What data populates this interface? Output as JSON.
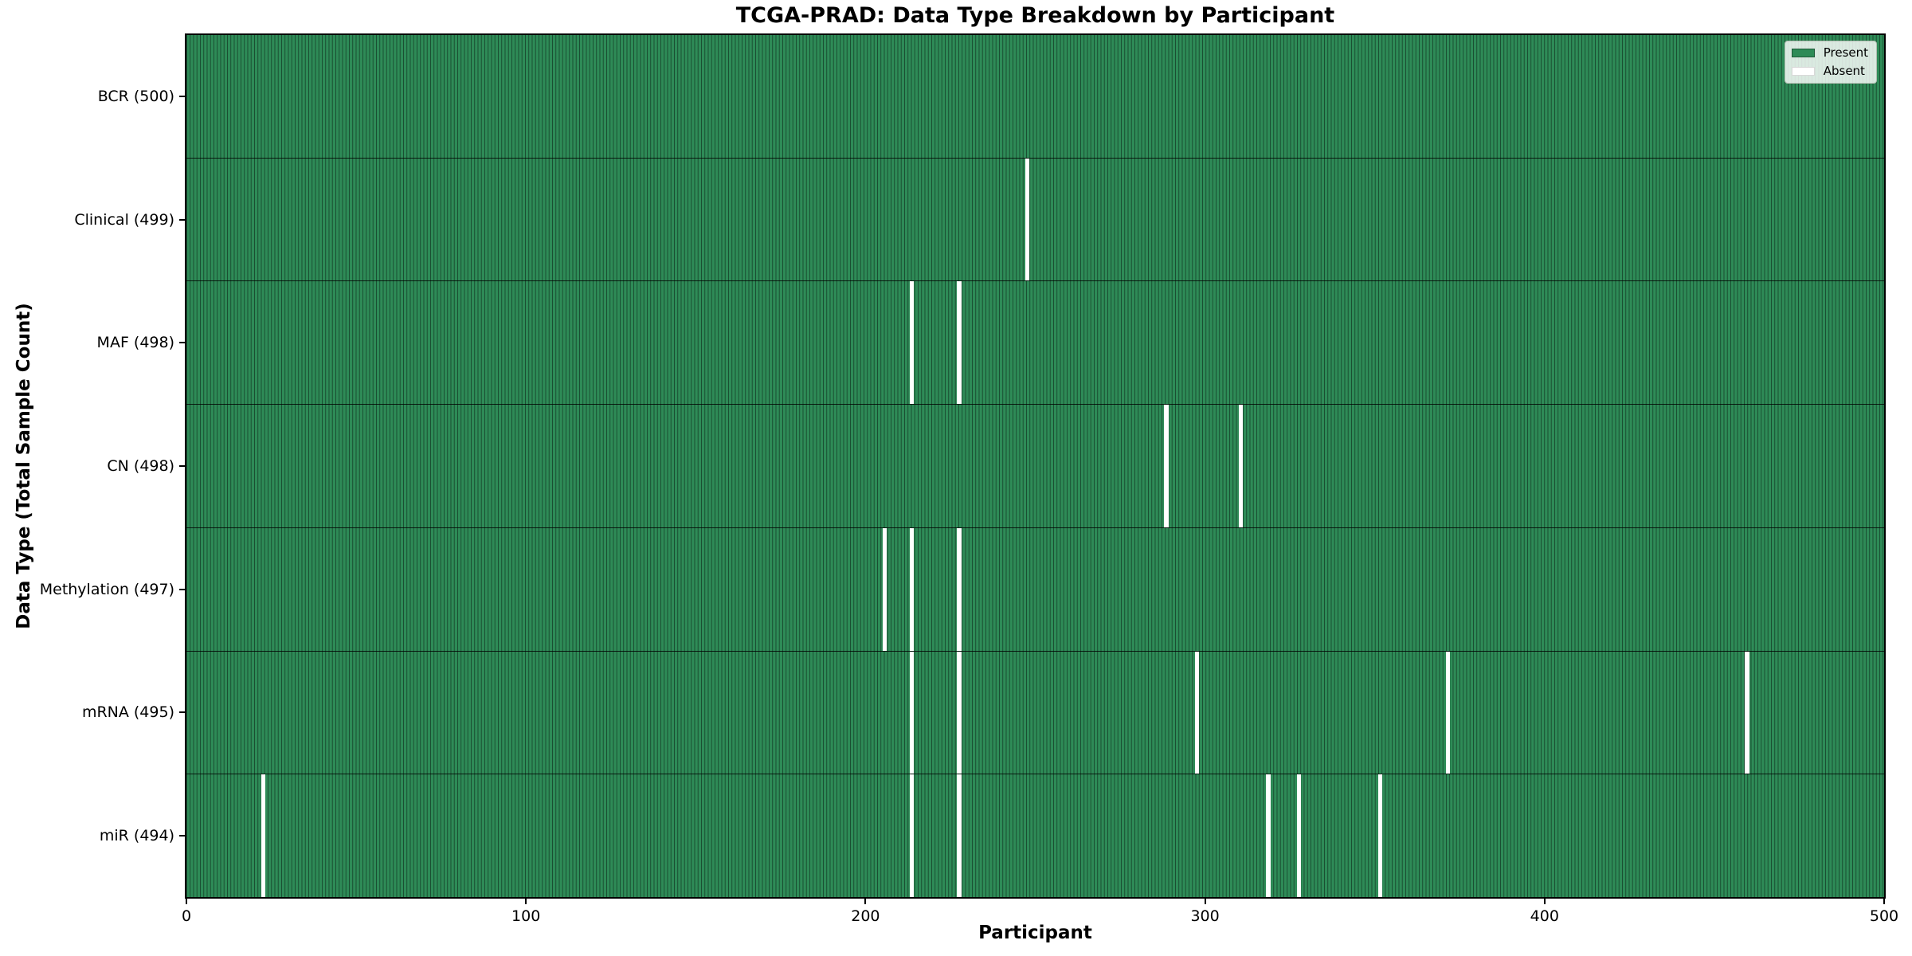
{
  "title": "TCGA-PRAD: Data Type Breakdown by Participant",
  "axes": {
    "xlabel": "Participant",
    "ylabel": "Data Type (Total Sample Count)"
  },
  "legend": {
    "entries": [
      {
        "label": "Present"
      },
      {
        "label": "Absent"
      }
    ]
  },
  "colors": {
    "present": "#2e8b57",
    "absent": "#ffffff",
    "bar_edge": "rgba(0,0,0,0.45)",
    "row_separator": "rgba(0,0,0,0.8)",
    "legend_bg": "rgba(255,255,255,0.82)",
    "legend_border": "#b0bdb0"
  },
  "chart_data": {
    "type": "heatmap",
    "title": "TCGA-PRAD: Data Type Breakdown by Participant",
    "xlabel": "Participant",
    "ylabel": "Data Type (Total Sample Count)",
    "x_range": [
      0,
      500
    ],
    "n_participants": 500,
    "x_tick_values": [
      0,
      100,
      200,
      300,
      400,
      500
    ],
    "legend_entries": [
      "Present",
      "Absent"
    ],
    "legend_position": "upper right",
    "grid": false,
    "rows": [
      {
        "data_type": "BCR",
        "label": "BCR (500)",
        "total": 500,
        "absent_participants": []
      },
      {
        "data_type": "Clinical",
        "label": "Clinical (499)",
        "total": 499,
        "absent_participants": [
          247
        ]
      },
      {
        "data_type": "MAF",
        "label": "MAF (498)",
        "total": 498,
        "absent_participants": [
          213,
          227
        ]
      },
      {
        "data_type": "CN",
        "label": "CN (498)",
        "total": 498,
        "absent_participants": [
          288,
          310
        ]
      },
      {
        "data_type": "Methylation",
        "label": "Methylation (497)",
        "total": 497,
        "absent_participants": [
          205,
          213,
          227
        ]
      },
      {
        "data_type": "mRNA",
        "label": "mRNA (495)",
        "total": 495,
        "absent_participants": [
          213,
          227,
          297,
          371,
          459
        ]
      },
      {
        "data_type": "miR",
        "label": "miR (494)",
        "total": 494,
        "absent_participants": [
          22,
          213,
          227,
          318,
          327,
          351
        ]
      }
    ]
  }
}
